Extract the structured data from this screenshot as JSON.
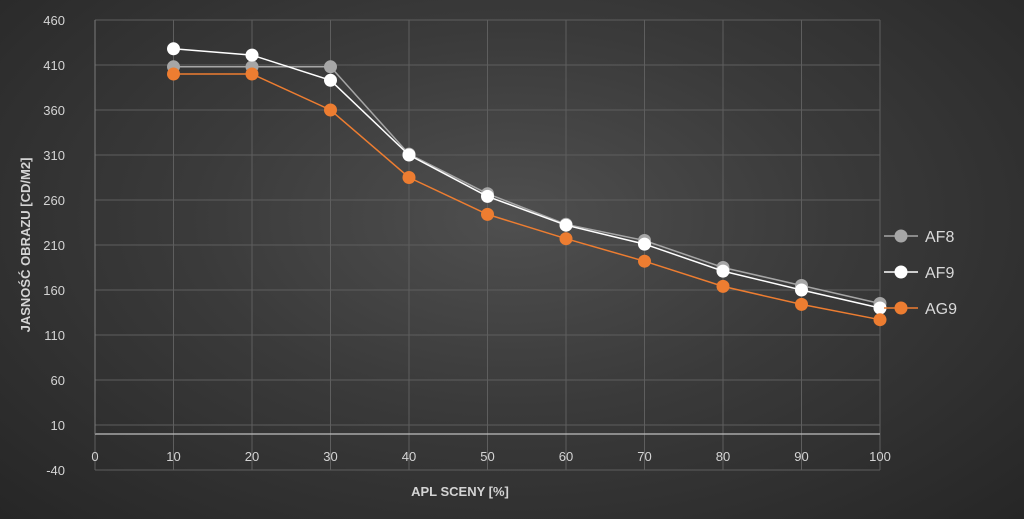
{
  "chart_data": {
    "type": "line",
    "title": "",
    "xlabel": "APL SCENY [%]",
    "ylabel": "JASNOŚĆ OBRAZU [CD/M2]",
    "xlim": [
      0,
      100
    ],
    "ylim": [
      -40,
      460
    ],
    "x_ticks": [
      0,
      10,
      20,
      30,
      40,
      50,
      60,
      70,
      80,
      90,
      100
    ],
    "y_ticks": [
      -40,
      10,
      60,
      110,
      160,
      210,
      260,
      310,
      360,
      410,
      460
    ],
    "grid": "vertical and horizontal",
    "legend_position": "right",
    "x": [
      10,
      20,
      30,
      40,
      50,
      60,
      70,
      80,
      90,
      100
    ],
    "series": [
      {
        "name": "AF8",
        "color": "#a6a6a6",
        "values": [
          408,
          408,
          408,
          311,
          267,
          233,
          215,
          185,
          165,
          145
        ]
      },
      {
        "name": "AF9",
        "color": "#ffffff",
        "values": [
          428,
          421,
          393,
          310,
          264,
          232,
          211,
          181,
          160,
          140
        ]
      },
      {
        "name": "AG9",
        "color": "#ed7d31",
        "values": [
          400,
          400,
          360,
          285,
          244,
          217,
          192,
          164,
          144,
          127
        ]
      }
    ]
  }
}
